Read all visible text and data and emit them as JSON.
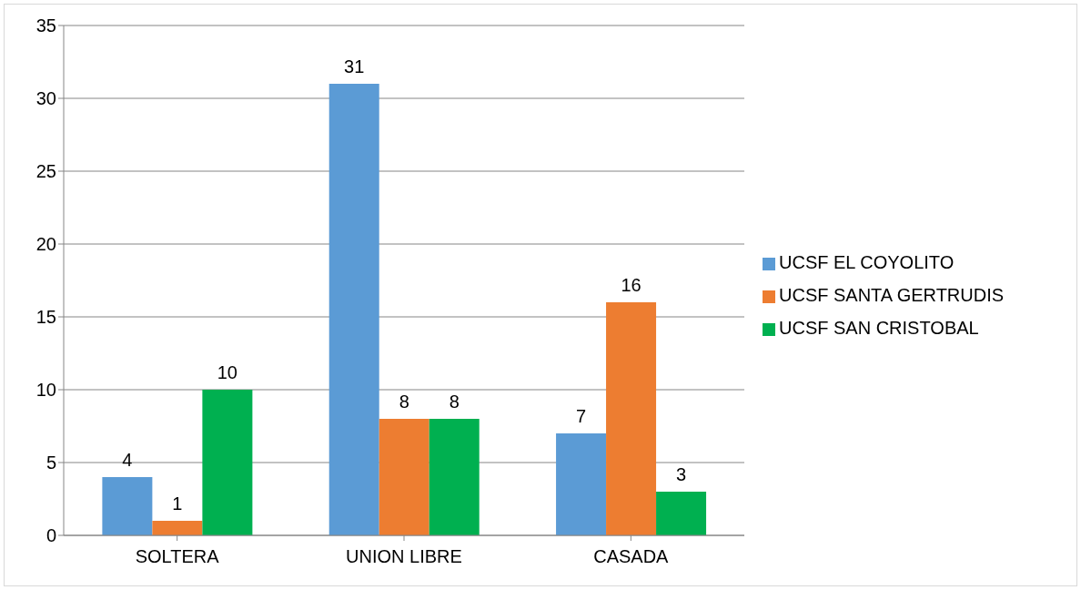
{
  "chart_data": {
    "type": "bar",
    "categories": [
      "SOLTERA",
      "UNION LIBRE",
      "CASADA"
    ],
    "series": [
      {
        "name": "UCSF EL COYOLITO",
        "color": "#5b9bd5",
        "values": [
          4,
          31,
          7
        ]
      },
      {
        "name": "UCSF SANTA GERTRUDIS",
        "color": "#ed7d31",
        "values": [
          1,
          8,
          16
        ]
      },
      {
        "name": "UCSF SAN CRISTOBAL",
        "color": "#00b050",
        "values": [
          10,
          8,
          3
        ]
      }
    ],
    "ylim": [
      0,
      35
    ],
    "yticks": [
      0,
      5,
      10,
      15,
      20,
      25,
      30,
      35
    ],
    "grid": "y",
    "legend": "right",
    "data_labels": true
  }
}
